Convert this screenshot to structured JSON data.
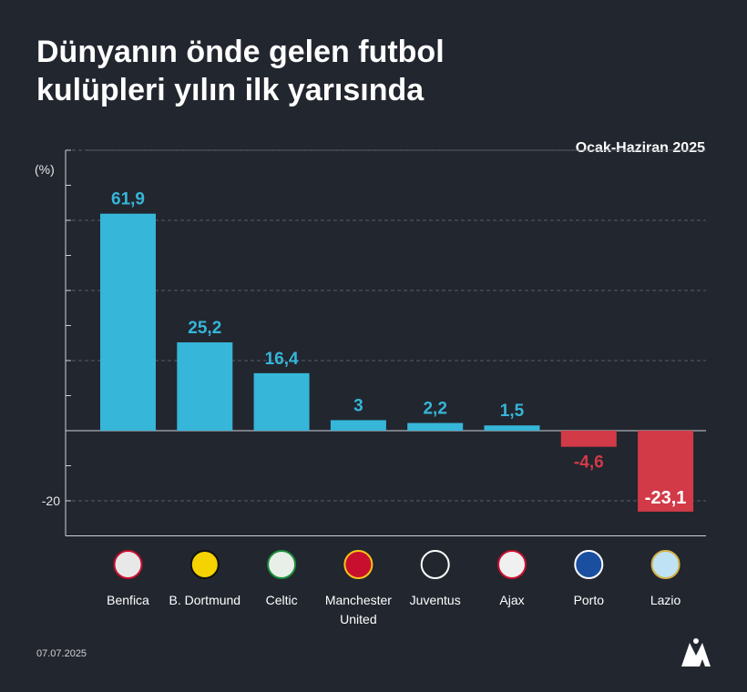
{
  "title_lines": [
    "Dünyanın önde gelen futbol",
    "kulüpleri yılın ilk yarısında"
  ],
  "period": "Ocak-Haziran 2025",
  "date": "07.07.2025",
  "colors": {
    "positive": "#36b6d8",
    "negative": "#d23a47",
    "background": "#22262f",
    "text": "#ffffff"
  },
  "chart_data": {
    "type": "bar",
    "title": "Dünyanın önde gelen futbol kulüpleri yılın ilk yarısında",
    "subtitle": "Ocak-Haziran 2025",
    "ylabel": "(%)",
    "ylim": [
      -30,
      80
    ],
    "yticks_labeled": [
      -20
    ],
    "grid": true,
    "categories": [
      "Benfica",
      "B. Dortmund",
      "Celtic",
      "Manchester United",
      "Juventus",
      "Ajax",
      "Porto",
      "Lazio"
    ],
    "category_lines": [
      [
        "Benfica"
      ],
      [
        "B. Dortmund"
      ],
      [
        "Celtic"
      ],
      [
        "Manchester",
        "United"
      ],
      [
        "Juventus"
      ],
      [
        "Ajax"
      ],
      [
        "Porto"
      ],
      [
        "Lazio"
      ]
    ],
    "values": [
      61.9,
      25.2,
      16.4,
      3,
      2.2,
      1.5,
      -4.6,
      -23.1
    ],
    "value_labels": [
      "61,9",
      "25,2",
      "16,4",
      "3",
      "2,2",
      "1,5",
      "-4,6",
      "-23,1"
    ],
    "icons": [
      "benfica-crest-icon",
      "dortmund-crest-icon",
      "celtic-crest-icon",
      "manchester-united-crest-icon",
      "juventus-crest-icon",
      "ajax-crest-icon",
      "porto-crest-icon",
      "lazio-crest-icon"
    ]
  }
}
